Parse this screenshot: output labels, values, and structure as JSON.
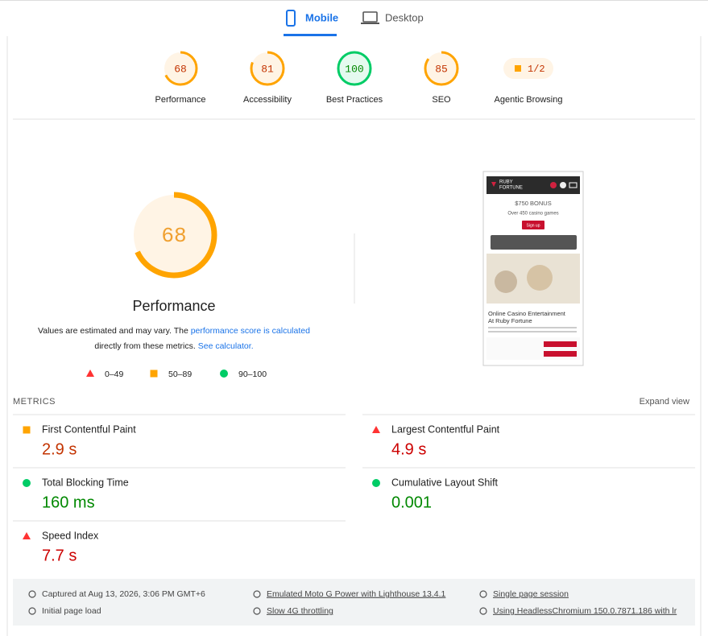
{
  "tabs": [
    "Mobile",
    "Desktop"
  ],
  "gauges": [
    {
      "score": 68,
      "label": "Performance"
    },
    {
      "score": 81,
      "label": "Accessibility"
    },
    {
      "score": 100,
      "label": "Best Practices"
    },
    {
      "score": 85,
      "label": "SEO"
    }
  ],
  "agentic": {
    "value": "1/2",
    "label": "Agentic Browsing"
  },
  "main": {
    "title": "Performance",
    "desc": [
      "Values are estimated and may vary. The ",
      "performance score is calculated",
      " directly from these metrics. ",
      "See calculator."
    ]
  },
  "legend": [
    {
      "label": "0–49",
      "shape": "triangle",
      "color": "#f33"
    },
    {
      "label": "50–89",
      "shape": "square",
      "color": "#ffa400"
    },
    {
      "label": "90–100",
      "shape": "circle",
      "color": "#0c6"
    }
  ],
  "preview": {
    "brand": [
      "RUBY",
      "FORTUNE"
    ],
    "bonus": "$750 BONUS",
    "games": "Over 450 casino games",
    "button": "Sign up",
    "heading": [
      "Online Casino Entertainment",
      "At Ruby Fortune"
    ]
  },
  "metrics_header": {
    "title": "METRICS",
    "toggle": "Expand view"
  },
  "metrics": [
    {
      "label": "First Contentful Paint",
      "value": "2.9 s",
      "shape": "square",
      "color": "#ffa400",
      "text_color": "#c33300"
    },
    {
      "label": "Largest Contentful Paint",
      "value": "4.9 s",
      "shape": "triangle",
      "color": "#f33",
      "text_color": "#c00"
    },
    {
      "label": "Total Blocking Time",
      "value": "160 ms",
      "shape": "circle",
      "color": "#0c6",
      "text_color": "#080"
    },
    {
      "label": "Cumulative Layout Shift",
      "value": "0.001",
      "shape": "circle",
      "color": "#0c6",
      "text_color": "#080"
    },
    {
      "label": "Speed Index",
      "value": "7.7 s",
      "shape": "triangle",
      "color": "#f33",
      "text_color": "#c00"
    }
  ],
  "footer": [
    "Captured at Aug 13, 2026, 3:06 PM GMT+6",
    "Initial page load",
    "Emulated Moto G Power with Lighthouse 13.4.1",
    "Slow 4G throttling",
    "Single page session",
    "Using HeadlessChromium 150.0.7871.186 with lr"
  ]
}
